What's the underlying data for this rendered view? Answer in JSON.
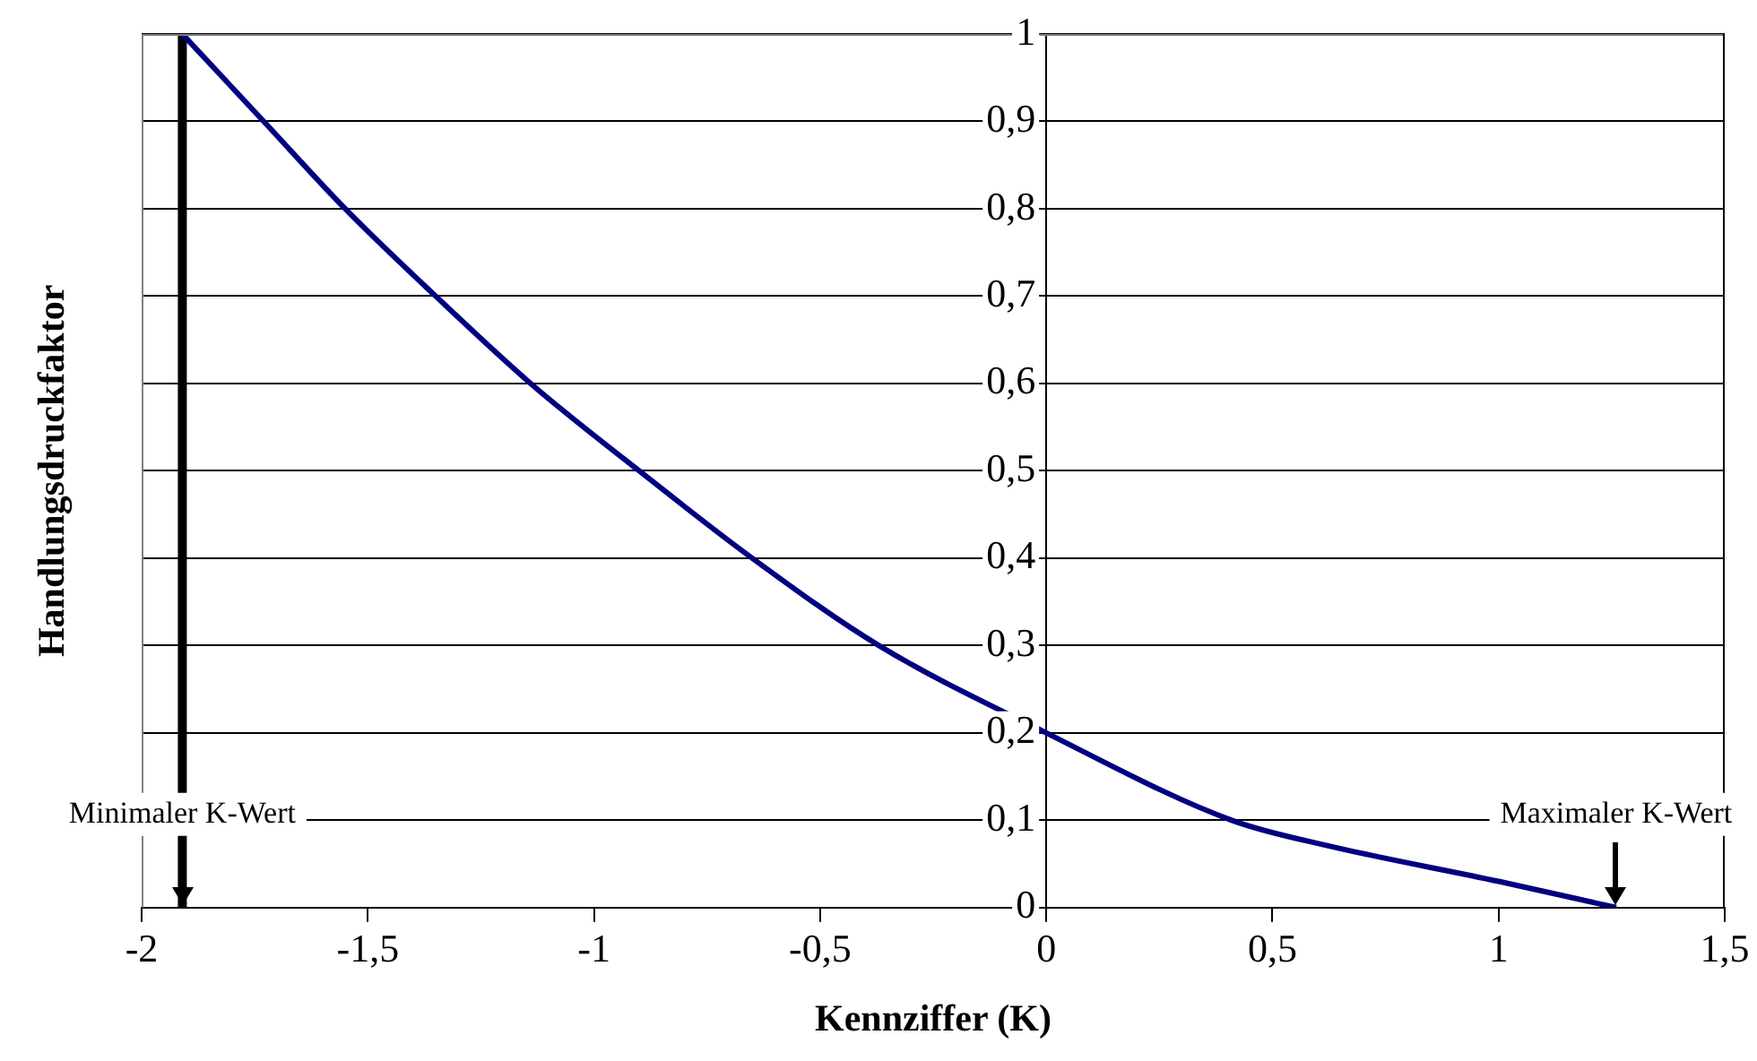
{
  "chart_data": {
    "type": "line",
    "xlabel": "Kennziffer (K)",
    "ylabel": "Handlungsdruckfaktor",
    "series": [
      {
        "color": "#000080",
        "x": [
          -1.91,
          -1.73,
          -1.55,
          -1.35,
          -1.14,
          -0.9,
          -0.65,
          -0.37,
          0,
          0.41,
          0.63,
          1.0,
          1.26
        ],
        "values": [
          1,
          0.9,
          0.8,
          0.7,
          0.6,
          0.5,
          0.4,
          0.3,
          0.2,
          0.1,
          0.07,
          0.03,
          0
        ]
      }
    ],
    "xlim": [
      -2,
      1.5
    ],
    "xticks": [
      -2,
      {
        "value": -1.5,
        "label": "-1,5"
      },
      -1,
      {
        "value": -0.5,
        "label": "-0,5"
      },
      0,
      {
        "value": 0.5,
        "label": "0,5"
      },
      1,
      {
        "value": 1.5,
        "label": "1,5"
      }
    ],
    "ylim": [
      0,
      1
    ],
    "yticks": [
      0,
      {
        "value": 0.1,
        "label": "0,1"
      },
      {
        "value": 0.2,
        "label": "0,2"
      },
      {
        "value": 0.3,
        "label": "0,3"
      },
      {
        "value": 0.4,
        "label": "0,4"
      },
      {
        "value": 0.5,
        "label": "0,5"
      },
      {
        "value": 0.6,
        "label": "0,6"
      },
      {
        "value": 0.7,
        "label": "0,7"
      },
      {
        "value": 0.8,
        "label": "0,8"
      },
      {
        "value": 0.9,
        "label": "0,9"
      },
      1
    ],
    "ref_lines": [
      {
        "axis": "x",
        "value": -1.91,
        "color": "#000000"
      }
    ],
    "annotations": [
      {
        "text": "Minimaler K-Wert",
        "x": -1.91,
        "y": 0
      },
      {
        "text": "Maximaler K-Wert",
        "x": 1.26,
        "y": 0
      }
    ],
    "grid": "y",
    "legend": false,
    "marker": "none",
    "line_style": "solid"
  }
}
